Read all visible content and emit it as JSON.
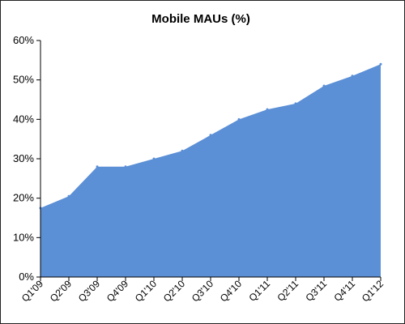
{
  "chart_data": {
    "type": "area",
    "title": "Mobile MAUs (%)",
    "xlabel": "",
    "ylabel": "",
    "categories": [
      "Q1'09",
      "Q2'09",
      "Q3'09",
      "Q4'09",
      "Q1'10",
      "Q2'10",
      "Q3'10",
      "Q4'10",
      "Q1'11",
      "Q2'11",
      "Q3'11",
      "Q4'11",
      "Q1'12"
    ],
    "values": [
      17.5,
      20.5,
      28,
      28,
      30,
      32,
      36,
      40,
      42.5,
      44,
      48.5,
      51,
      54
    ],
    "ylim": [
      0,
      60
    ],
    "yticks": [
      0,
      10,
      20,
      30,
      40,
      50,
      60
    ],
    "ytick_labels": [
      "0%",
      "10%",
      "20%",
      "30%",
      "40%",
      "50%",
      "60%"
    ],
    "grid": false,
    "legend": "none",
    "colors": {
      "area": "#5b8fd6",
      "axis": "#000000"
    }
  }
}
